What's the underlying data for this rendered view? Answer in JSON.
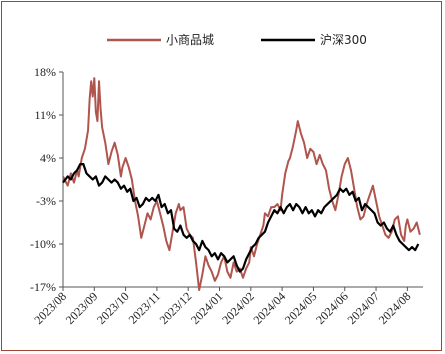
{
  "chart_data": {
    "type": "line",
    "title": "",
    "xlabel": "",
    "ylabel": "",
    "x_ticks": [
      "2023/08",
      "2023/09",
      "2023/10",
      "2023/11",
      "2023/12",
      "2024/01",
      "2024/02",
      "2024/04",
      "2024/05",
      "2024/06",
      "2024/07",
      "2024/08"
    ],
    "y_ticks": [
      "18%",
      "11%",
      "4%",
      "-3%",
      "-10%",
      "-17%"
    ],
    "ylim": [
      -17,
      18
    ],
    "grid": false,
    "legend_position": "top-center",
    "series": [
      {
        "name": "小商品城",
        "color": "#b0554d",
        "points": [
          [
            0.0,
            1.0
          ],
          [
            0.3,
            -0.5
          ],
          [
            0.5,
            1.5
          ],
          [
            0.7,
            0.0
          ],
          [
            0.9,
            2.0
          ],
          [
            1.0,
            1.0
          ],
          [
            1.2,
            4.0
          ],
          [
            1.4,
            5.5
          ],
          [
            1.6,
            8.5
          ],
          [
            1.7,
            13.5
          ],
          [
            1.8,
            16.5
          ],
          [
            1.9,
            14.0
          ],
          [
            2.0,
            17.0
          ],
          [
            2.1,
            11.5
          ],
          [
            2.2,
            10.0
          ],
          [
            2.3,
            16.5
          ],
          [
            2.4,
            12.0
          ],
          [
            2.5,
            9.0
          ],
          [
            2.7,
            6.5
          ],
          [
            2.9,
            3.0
          ],
          [
            3.1,
            5.0
          ],
          [
            3.3,
            6.5
          ],
          [
            3.5,
            4.5
          ],
          [
            3.7,
            1.0
          ],
          [
            3.8,
            2.5
          ],
          [
            4.0,
            4.0
          ],
          [
            4.2,
            2.5
          ],
          [
            4.4,
            0.5
          ],
          [
            4.6,
            -3.0
          ],
          [
            4.8,
            -5.5
          ],
          [
            5.0,
            -9.0
          ],
          [
            5.2,
            -7.0
          ],
          [
            5.4,
            -5.0
          ],
          [
            5.6,
            -6.0
          ],
          [
            5.8,
            -4.0
          ],
          [
            6.0,
            -3.0
          ],
          [
            6.2,
            -5.0
          ],
          [
            6.4,
            -7.0
          ],
          [
            6.6,
            -9.5
          ],
          [
            6.8,
            -11.0
          ],
          [
            7.0,
            -8.0
          ],
          [
            7.2,
            -5.0
          ],
          [
            7.4,
            -3.5
          ],
          [
            7.5,
            -4.5
          ],
          [
            7.7,
            -4.0
          ],
          [
            7.9,
            -7.5
          ],
          [
            8.1,
            -8.5
          ],
          [
            8.3,
            -9.0
          ],
          [
            8.5,
            -13.0
          ],
          [
            8.7,
            -17.5
          ],
          [
            8.9,
            -15.0
          ],
          [
            9.1,
            -12.0
          ],
          [
            9.3,
            -13.5
          ],
          [
            9.5,
            -14.5
          ],
          [
            9.7,
            -16.0
          ],
          [
            9.9,
            -15.0
          ],
          [
            10.1,
            -13.0
          ],
          [
            10.3,
            -12.0
          ],
          [
            10.5,
            -14.5
          ],
          [
            10.7,
            -15.5
          ],
          [
            10.9,
            -13.0
          ],
          [
            11.1,
            -14.5
          ],
          [
            11.3,
            -14.0
          ],
          [
            11.5,
            -15.5
          ],
          [
            11.7,
            -14.0
          ],
          [
            11.9,
            -13.0
          ],
          [
            12.0,
            -10.5
          ],
          [
            12.2,
            -12.0
          ],
          [
            12.4,
            -10.0
          ],
          [
            12.6,
            -8.5
          ],
          [
            12.8,
            -7.0
          ],
          [
            12.9,
            -5.0
          ],
          [
            13.1,
            -5.5
          ],
          [
            13.3,
            -4.0
          ],
          [
            13.5,
            -4.0
          ],
          [
            13.7,
            -3.5
          ],
          [
            13.9,
            -4.5
          ],
          [
            14.0,
            -2.0
          ],
          [
            14.2,
            1.5
          ],
          [
            14.4,
            3.5
          ],
          [
            14.5,
            4.0
          ],
          [
            14.7,
            6.0
          ],
          [
            14.9,
            8.5
          ],
          [
            15.0,
            10.0
          ],
          [
            15.2,
            8.0
          ],
          [
            15.4,
            6.5
          ],
          [
            15.6,
            4.0
          ],
          [
            15.8,
            5.5
          ],
          [
            16.0,
            5.0
          ],
          [
            16.2,
            3.0
          ],
          [
            16.4,
            4.5
          ],
          [
            16.6,
            3.0
          ],
          [
            16.8,
            2.0
          ],
          [
            17.0,
            -1.0
          ],
          [
            17.2,
            -3.0
          ],
          [
            17.4,
            -4.5
          ],
          [
            17.6,
            -2.0
          ],
          [
            17.8,
            1.0
          ],
          [
            18.0,
            3.0
          ],
          [
            18.2,
            4.0
          ],
          [
            18.4,
            2.0
          ],
          [
            18.6,
            -1.0
          ],
          [
            18.8,
            -4.0
          ],
          [
            19.0,
            -6.0
          ],
          [
            19.2,
            -5.5
          ],
          [
            19.4,
            -3.5
          ],
          [
            19.6,
            -2.0
          ],
          [
            19.8,
            -0.5
          ],
          [
            20.0,
            -3.0
          ],
          [
            20.2,
            -5.5
          ],
          [
            20.4,
            -7.0
          ],
          [
            20.6,
            -8.5
          ],
          [
            20.8,
            -9.0
          ],
          [
            21.0,
            -8.0
          ],
          [
            21.2,
            -6.0
          ],
          [
            21.4,
            -5.5
          ],
          [
            21.6,
            -8.5
          ],
          [
            21.8,
            -9.5
          ],
          [
            21.9,
            -7.0
          ],
          [
            22.0,
            -6.0
          ],
          [
            22.2,
            -8.0
          ],
          [
            22.4,
            -7.5
          ],
          [
            22.6,
            -6.5
          ],
          [
            22.8,
            -8.5
          ]
        ]
      },
      {
        "name": "沪深300",
        "color": "#000000",
        "points": [
          [
            0.0,
            0.0
          ],
          [
            0.3,
            1.0
          ],
          [
            0.5,
            0.5
          ],
          [
            0.7,
            1.5
          ],
          [
            0.9,
            2.0
          ],
          [
            1.1,
            3.0
          ],
          [
            1.3,
            3.0
          ],
          [
            1.5,
            1.5
          ],
          [
            1.7,
            1.0
          ],
          [
            1.9,
            0.5
          ],
          [
            2.1,
            1.0
          ],
          [
            2.3,
            -0.5
          ],
          [
            2.5,
            0.0
          ],
          [
            2.7,
            1.0
          ],
          [
            2.9,
            0.5
          ],
          [
            3.1,
            0.0
          ],
          [
            3.3,
            0.5
          ],
          [
            3.5,
            0.0
          ],
          [
            3.7,
            -1.0
          ],
          [
            3.9,
            -0.5
          ],
          [
            4.1,
            -1.5
          ],
          [
            4.3,
            -1.0
          ],
          [
            4.5,
            -3.0
          ],
          [
            4.7,
            -2.5
          ],
          [
            4.9,
            -4.0
          ],
          [
            5.1,
            -3.5
          ],
          [
            5.3,
            -2.5
          ],
          [
            5.5,
            -3.0
          ],
          [
            5.7,
            -2.5
          ],
          [
            5.9,
            -3.0
          ],
          [
            6.1,
            -2.0
          ],
          [
            6.3,
            -4.0
          ],
          [
            6.5,
            -3.5
          ],
          [
            6.7,
            -5.0
          ],
          [
            6.9,
            -4.5
          ],
          [
            7.1,
            -7.5
          ],
          [
            7.3,
            -8.0
          ],
          [
            7.5,
            -7.0
          ],
          [
            7.7,
            -8.5
          ],
          [
            7.9,
            -9.0
          ],
          [
            8.1,
            -8.5
          ],
          [
            8.3,
            -9.5
          ],
          [
            8.5,
            -10.0
          ],
          [
            8.7,
            -11.0
          ],
          [
            8.9,
            -9.5
          ],
          [
            9.1,
            -10.5
          ],
          [
            9.3,
            -11.0
          ],
          [
            9.5,
            -12.0
          ],
          [
            9.7,
            -11.5
          ],
          [
            9.9,
            -12.5
          ],
          [
            10.1,
            -11.5
          ],
          [
            10.3,
            -12.0
          ],
          [
            10.5,
            -13.0
          ],
          [
            10.7,
            -12.5
          ],
          [
            10.9,
            -12.0
          ],
          [
            11.1,
            -13.5
          ],
          [
            11.3,
            -14.5
          ],
          [
            11.5,
            -14.0
          ],
          [
            11.7,
            -12.5
          ],
          [
            11.9,
            -11.5
          ],
          [
            12.1,
            -10.5
          ],
          [
            12.3,
            -10.0
          ],
          [
            12.5,
            -9.0
          ],
          [
            12.7,
            -8.5
          ],
          [
            12.9,
            -8.0
          ],
          [
            13.1,
            -6.5
          ],
          [
            13.3,
            -5.5
          ],
          [
            13.5,
            -4.5
          ],
          [
            13.7,
            -5.0
          ],
          [
            13.9,
            -4.0
          ],
          [
            14.1,
            -5.0
          ],
          [
            14.3,
            -4.0
          ],
          [
            14.5,
            -3.5
          ],
          [
            14.7,
            -4.5
          ],
          [
            14.9,
            -3.5
          ],
          [
            15.1,
            -4.0
          ],
          [
            15.3,
            -5.0
          ],
          [
            15.5,
            -4.0
          ],
          [
            15.7,
            -5.0
          ],
          [
            15.9,
            -4.5
          ],
          [
            16.1,
            -5.5
          ],
          [
            16.3,
            -4.5
          ],
          [
            16.5,
            -5.0
          ],
          [
            16.7,
            -4.0
          ],
          [
            16.9,
            -3.5
          ],
          [
            17.1,
            -3.0
          ],
          [
            17.3,
            -2.5
          ],
          [
            17.5,
            -2.0
          ],
          [
            17.7,
            -1.0
          ],
          [
            17.9,
            -1.5
          ],
          [
            18.1,
            -1.0
          ],
          [
            18.3,
            -2.0
          ],
          [
            18.5,
            -1.5
          ],
          [
            18.7,
            -3.0
          ],
          [
            18.9,
            -2.5
          ],
          [
            19.1,
            -4.5
          ],
          [
            19.3,
            -3.5
          ],
          [
            19.5,
            -4.0
          ],
          [
            19.7,
            -4.5
          ],
          [
            19.9,
            -5.0
          ],
          [
            20.1,
            -6.5
          ],
          [
            20.3,
            -7.0
          ],
          [
            20.5,
            -6.5
          ],
          [
            20.7,
            -7.5
          ],
          [
            20.9,
            -8.0
          ],
          [
            21.1,
            -7.0
          ],
          [
            21.3,
            -8.5
          ],
          [
            21.5,
            -9.5
          ],
          [
            21.7,
            -10.0
          ],
          [
            21.9,
            -10.5
          ],
          [
            22.1,
            -11.0
          ],
          [
            22.3,
            -10.5
          ],
          [
            22.5,
            -11.0
          ],
          [
            22.7,
            -10.0
          ]
        ]
      }
    ]
  }
}
